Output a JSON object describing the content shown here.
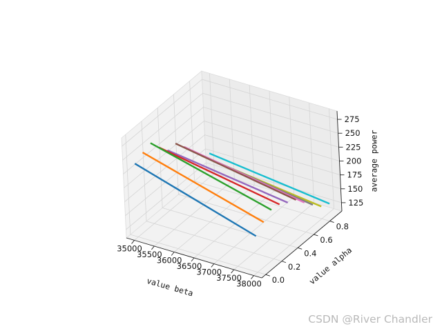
{
  "chart_data": {
    "type": "line",
    "projection": "3d",
    "title": "",
    "xlabel": "value beta",
    "ylabel": "value alpha",
    "zlabel": "average power",
    "xlim": [
      34800,
      38200
    ],
    "ylim": [
      -0.05,
      0.95
    ],
    "zlim": [
      110,
      290
    ],
    "x_ticks": [
      35000,
      35500,
      36000,
      36500,
      37000,
      37500,
      38000
    ],
    "x_tick_labels": [
      "35000",
      "35500",
      "36000",
      "36500",
      "37000",
      "37500",
      "38000"
    ],
    "y_ticks": [
      0.0,
      0.2,
      0.4,
      0.6,
      0.8
    ],
    "y_tick_labels": [
      "0.0",
      "0.2",
      "0.4",
      "0.6",
      "0.8"
    ],
    "z_ticks": [
      125,
      150,
      175,
      200,
      225,
      250,
      275
    ],
    "z_tick_labels": [
      "125",
      "150",
      "175",
      "200",
      "225",
      "250",
      "275"
    ],
    "grid": true,
    "legend": "none",
    "series": [
      {
        "color": "#1f77b4",
        "x": [
          35000,
          38000
        ],
        "y": [
          0.0,
          0.0
        ],
        "z": [
          242,
          175
        ]
      },
      {
        "color": "#ff7f0e",
        "x": [
          35000,
          38000
        ],
        "y": [
          0.1,
          0.1
        ],
        "z": [
          250,
          188
        ]
      },
      {
        "color": "#2ca02c",
        "x": [
          35000,
          38000
        ],
        "y": [
          0.2,
          0.2
        ],
        "z": [
          255,
          198
        ]
      },
      {
        "color": "#d62728",
        "x": [
          35000,
          38000
        ],
        "y": [
          0.3,
          0.3
        ],
        "z": [
          235,
          196
        ]
      },
      {
        "color": "#9467bd",
        "x": [
          35000,
          38000
        ],
        "y": [
          0.4,
          0.4
        ],
        "z": [
          218,
          187
        ]
      },
      {
        "color": "#8c564b",
        "x": [
          35000,
          38000
        ],
        "y": [
          0.5,
          0.5
        ],
        "z": [
          218,
          180
        ]
      },
      {
        "color": "#e377c2",
        "x": [
          35000,
          38000
        ],
        "y": [
          0.6,
          0.6
        ],
        "z": [
          200,
          163
        ]
      },
      {
        "color": "#7f7f7f",
        "x": [
          35000,
          38000
        ],
        "y": [
          0.7,
          0.7
        ],
        "z": [
          180,
          147
        ]
      },
      {
        "color": "#bcbd22",
        "x": [
          35000,
          38000
        ],
        "y": [
          0.8,
          0.8
        ],
        "z": [
          160,
          132
        ]
      },
      {
        "color": "#17becf",
        "x": [
          35000,
          38000
        ],
        "y": [
          0.9,
          0.9
        ],
        "z": [
          152,
          125
        ]
      }
    ]
  },
  "watermark": "CSDN @River Chandler"
}
